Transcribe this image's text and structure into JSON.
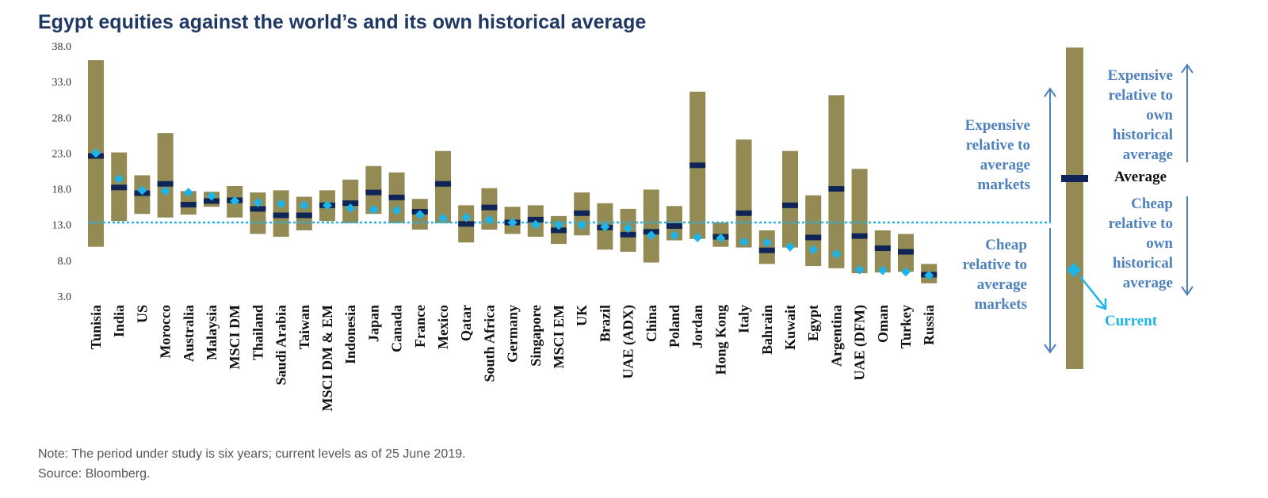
{
  "chart_data": {
    "type": "bar",
    "title": "Egypt equities against the world’s and its own historical average",
    "ylim": [
      3.0,
      38.0
    ],
    "yticks": [
      "38.0",
      "33.0",
      "28.0",
      "23.0",
      "18.0",
      "13.0",
      "8.0",
      "3.0"
    ],
    "world_average": 13.3,
    "colors": {
      "range": "#948a54",
      "average": "#0f2557",
      "current": "#1fb4e8",
      "world_line": "#1fb4e8",
      "legend_text": "#4f81bd",
      "title": "#1f3864"
    },
    "markets": [
      {
        "name": "Tunisia",
        "min": 9.9,
        "max": 36.0,
        "average": 22.6,
        "current": 23.0
      },
      {
        "name": "India",
        "min": 13.5,
        "max": 23.1,
        "average": 18.2,
        "current": 19.4
      },
      {
        "name": "US",
        "min": 14.5,
        "max": 19.9,
        "average": 17.4,
        "current": 17.8
      },
      {
        "name": "Morocco",
        "min": 14.0,
        "max": 25.8,
        "average": 18.7,
        "current": 17.7
      },
      {
        "name": "Australia",
        "min": 14.4,
        "max": 17.7,
        "average": 15.8,
        "current": 17.5
      },
      {
        "name": "Malaysia",
        "min": 15.5,
        "max": 17.6,
        "average": 16.3,
        "current": 17.0
      },
      {
        "name": "MSCI DM",
        "min": 14.0,
        "max": 18.4,
        "average": 16.4,
        "current": 16.3
      },
      {
        "name": "Thailand",
        "min": 11.7,
        "max": 17.5,
        "average": 15.2,
        "current": 16.1
      },
      {
        "name": "Saudi Arabia",
        "min": 11.3,
        "max": 17.8,
        "average": 14.3,
        "current": 15.9
      },
      {
        "name": "Taiwan",
        "min": 12.2,
        "max": 16.9,
        "average": 14.3,
        "current": 15.7
      },
      {
        "name": "MSCI DM & EM",
        "min": 13.5,
        "max": 17.8,
        "average": 15.7,
        "current": 15.7
      },
      {
        "name": "Indonesia",
        "min": 13.2,
        "max": 19.3,
        "average": 16.0,
        "current": 15.3
      },
      {
        "name": "Japan",
        "min": 14.5,
        "max": 21.2,
        "average": 17.5,
        "current": 15.1
      },
      {
        "name": "Canada",
        "min": 13.2,
        "max": 20.3,
        "average": 16.8,
        "current": 15.0
      },
      {
        "name": "France",
        "min": 12.3,
        "max": 16.6,
        "average": 14.8,
        "current": 14.4
      },
      {
        "name": "Mexico",
        "min": 13.2,
        "max": 23.3,
        "average": 18.7,
        "current": 13.9
      },
      {
        "name": "Qatar",
        "min": 10.5,
        "max": 15.7,
        "average": 13.1,
        "current": 14.0
      },
      {
        "name": "South Africa",
        "min": 12.3,
        "max": 18.1,
        "average": 15.4,
        "current": 13.7
      },
      {
        "name": "Germany",
        "min": 11.7,
        "max": 15.5,
        "average": 13.3,
        "current": 13.3
      },
      {
        "name": "Singapore",
        "min": 11.3,
        "max": 15.7,
        "average": 13.7,
        "current": 13.0
      },
      {
        "name": "MSCI EM",
        "min": 10.3,
        "max": 14.2,
        "average": 12.2,
        "current": 12.9
      },
      {
        "name": "UK",
        "min": 11.5,
        "max": 17.5,
        "average": 14.6,
        "current": 12.9
      },
      {
        "name": "Brazil",
        "min": 9.5,
        "max": 16.0,
        "average": 12.6,
        "current": 12.7
      },
      {
        "name": "UAE (ADX)",
        "min": 9.2,
        "max": 15.2,
        "average": 11.6,
        "current": 12.5
      },
      {
        "name": "China",
        "min": 7.7,
        "max": 17.9,
        "average": 12.0,
        "current": 11.5
      },
      {
        "name": "Poland",
        "min": 10.8,
        "max": 15.6,
        "average": 12.8,
        "current": 11.5
      },
      {
        "name": "Jordan",
        "min": 11.0,
        "max": 31.6,
        "average": 21.3,
        "current": 11.2
      },
      {
        "name": "Hong Kong",
        "min": 9.9,
        "max": 13.3,
        "average": 11.3,
        "current": 11.1
      },
      {
        "name": "Italy",
        "min": 9.8,
        "max": 24.9,
        "average": 14.6,
        "current": 10.6
      },
      {
        "name": "Bahrain",
        "min": 7.5,
        "max": 12.2,
        "average": 9.4,
        "current": 10.5
      },
      {
        "name": "Kuwait",
        "min": 9.8,
        "max": 23.3,
        "average": 15.7,
        "current": 9.9
      },
      {
        "name": "Egypt",
        "min": 7.2,
        "max": 17.1,
        "average": 11.2,
        "current": 9.5
      },
      {
        "name": "Argentina",
        "min": 6.9,
        "max": 31.1,
        "average": 18.0,
        "current": 8.9
      },
      {
        "name": "UAE (DFM)",
        "min": 6.2,
        "max": 20.8,
        "average": 11.4,
        "current": 6.7
      },
      {
        "name": "Oman",
        "min": 6.3,
        "max": 12.2,
        "average": 9.7,
        "current": 6.6
      },
      {
        "name": "Turkey",
        "min": 6.4,
        "max": 11.7,
        "average": 9.2,
        "current": 6.4
      },
      {
        "name": "Russia",
        "min": 4.8,
        "max": 7.5,
        "average": 6.0,
        "current": 5.9
      }
    ],
    "legend": {
      "expensive_markets": [
        "Expensive",
        "relative to",
        "average",
        "markets"
      ],
      "cheap_markets": [
        "Cheap",
        "relative to",
        "average",
        "markets"
      ],
      "expensive_own": [
        "Expensive",
        "relative to",
        "own",
        "historical",
        "average"
      ],
      "cheap_own": [
        "Cheap",
        "relative to",
        "own",
        "historical",
        "average"
      ],
      "average_label": "Average",
      "current_label": "Current"
    }
  },
  "notes": {
    "note": "Note: The period under study is six years; current levels as of 25 June 2019.",
    "source": "Source: Bloomberg."
  }
}
